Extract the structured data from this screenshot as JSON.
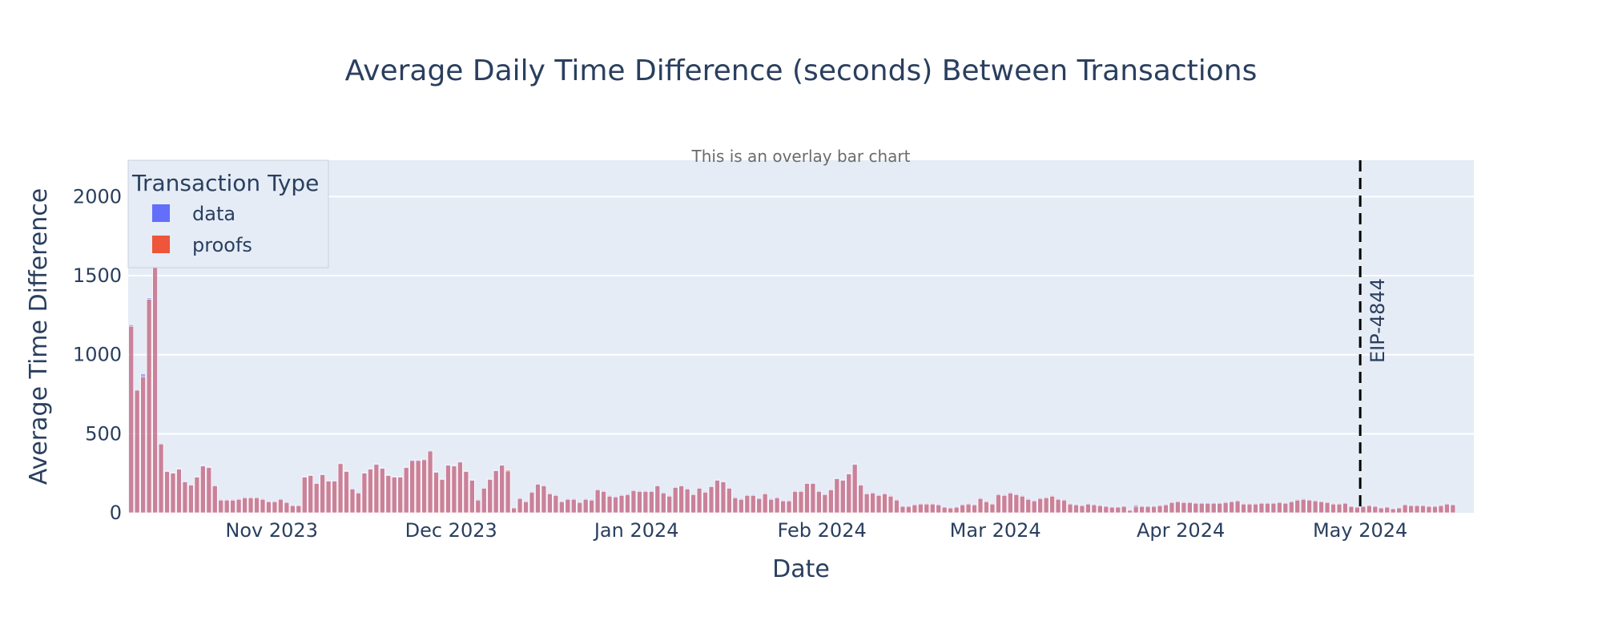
{
  "chart_data": {
    "type": "bar",
    "barmode": "overlay",
    "title": "Average Daily Time Difference (seconds) Between Transactions",
    "subtitle": "This is an overlay bar chart",
    "xlabel": "Date",
    "ylabel": "Average Time Difference",
    "x_start": "2023-10-08",
    "x_end": "2024-05-20",
    "ylim": [
      0,
      2230
    ],
    "y_ticks": [
      0,
      500,
      1000,
      1500,
      2000
    ],
    "x_ticks": [
      {
        "date": "2023-11-01",
        "label": "Nov 2023"
      },
      {
        "date": "2023-12-01",
        "label": "Dec 2023"
      },
      {
        "date": "2024-01-01",
        "label": "Jan 2024"
      },
      {
        "date": "2024-02-01",
        "label": "Feb 2024"
      },
      {
        "date": "2024-03-01",
        "label": "Mar 2024"
      },
      {
        "date": "2024-04-01",
        "label": "Apr 2024"
      },
      {
        "date": "2024-05-01",
        "label": "May 2024"
      }
    ],
    "grid": true,
    "legend": {
      "title": "Transaction Type",
      "position": "top-left",
      "items": [
        {
          "name": "data",
          "color": "#636efa"
        },
        {
          "name": "proofs",
          "color": "#ef553b"
        }
      ]
    },
    "vline": {
      "date": "2024-05-01",
      "label": "EIP-4844",
      "style": "dashed",
      "color": "#000000"
    },
    "colors": {
      "plot_bg": "#e5ecf6",
      "grid": "#ffffff",
      "text": "#2a3f5f",
      "data": "#636efa",
      "proofs": "#ef553b"
    },
    "series": [
      {
        "name": "data",
        "values": [
          1190,
          780,
          880,
          1360,
          2110,
          440,
          265,
          255,
          280,
          200,
          180,
          230,
          300,
          290,
          175,
          85,
          85,
          85,
          90,
          100,
          100,
          100,
          90,
          75,
          75,
          90,
          70,
          50,
          50,
          230,
          240,
          190,
          245,
          205,
          205,
          315,
          265,
          155,
          130,
          255,
          280,
          310,
          285,
          240,
          230,
          230,
          290,
          335,
          335,
          340,
          395,
          260,
          215,
          305,
          300,
          325,
          265,
          210,
          85,
          160,
          215,
          270,
          305,
          260,
          35,
          95,
          75,
          135,
          185,
          175,
          125,
          115,
          75,
          90,
          90,
          70,
          90,
          85,
          150,
          140,
          110,
          105,
          115,
          120,
          145,
          140,
          140,
          140,
          175,
          130,
          110,
          165,
          175,
          155,
          120,
          160,
          135,
          170,
          210,
          200,
          160,
          100,
          90,
          115,
          115,
          95,
          125,
          90,
          100,
          80,
          80,
          140,
          140,
          190,
          190,
          140,
          120,
          150,
          220,
          210,
          250,
          310,
          180,
          125,
          130,
          115,
          125,
          110,
          85,
          45,
          45,
          55,
          60,
          60,
          60,
          55,
          40,
          35,
          40,
          55,
          60,
          55,
          95,
          75,
          60,
          120,
          115,
          130,
          120,
          110,
          90,
          80,
          95,
          100,
          110,
          90,
          85,
          60,
          55,
          50,
          60,
          55,
          50,
          45,
          40,
          40,
          45,
          20,
          50,
          45,
          45,
          45,
          50,
          55,
          70,
          75,
          70,
          70,
          65,
          65,
          65,
          65,
          65,
          70,
          75,
          80,
          60,
          60,
          60,
          65,
          65,
          65,
          70,
          65,
          75,
          85,
          90,
          85,
          80,
          75,
          70,
          60,
          60,
          65,
          45,
          40,
          45,
          50,
          45,
          35,
          40,
          30,
          35,
          55,
          50,
          50,
          50,
          45,
          45,
          50,
          60,
          55
        ],
        "note": "overlaid semi-transparent"
      },
      {
        "name": "proofs",
        "values": [
          1180,
          775,
          860,
          1350,
          2100,
          435,
          260,
          250,
          275,
          195,
          175,
          225,
          295,
          285,
          170,
          80,
          80,
          80,
          85,
          95,
          95,
          95,
          85,
          70,
          70,
          85,
          65,
          45,
          45,
          225,
          235,
          185,
          240,
          200,
          200,
          310,
          260,
          150,
          125,
          250,
          275,
          305,
          280,
          235,
          225,
          225,
          285,
          330,
          330,
          335,
          390,
          255,
          210,
          300,
          295,
          320,
          260,
          205,
          80,
          155,
          210,
          265,
          300,
          270,
          30,
          90,
          70,
          130,
          180,
          170,
          120,
          110,
          70,
          85,
          85,
          65,
          85,
          80,
          145,
          135,
          105,
          100,
          110,
          115,
          140,
          135,
          135,
          135,
          170,
          125,
          105,
          160,
          170,
          150,
          115,
          155,
          130,
          165,
          205,
          195,
          155,
          95,
          85,
          110,
          110,
          90,
          120,
          85,
          95,
          75,
          75,
          135,
          135,
          185,
          185,
          135,
          115,
          145,
          215,
          205,
          245,
          305,
          175,
          120,
          125,
          110,
          120,
          105,
          80,
          40,
          40,
          50,
          55,
          55,
          55,
          50,
          35,
          30,
          35,
          50,
          55,
          50,
          90,
          70,
          55,
          115,
          110,
          125,
          115,
          105,
          85,
          75,
          90,
          95,
          105,
          85,
          80,
          55,
          50,
          45,
          55,
          50,
          45,
          40,
          35,
          35,
          40,
          15,
          40,
          40,
          40,
          40,
          45,
          50,
          65,
          70,
          65,
          65,
          60,
          60,
          60,
          60,
          60,
          65,
          70,
          75,
          55,
          55,
          55,
          60,
          60,
          60,
          65,
          60,
          70,
          80,
          85,
          80,
          75,
          70,
          65,
          55,
          55,
          60,
          40,
          35,
          40,
          45,
          40,
          30,
          35,
          25,
          30,
          50,
          45,
          45,
          45,
          40,
          40,
          45,
          55,
          50
        ]
      }
    ]
  }
}
